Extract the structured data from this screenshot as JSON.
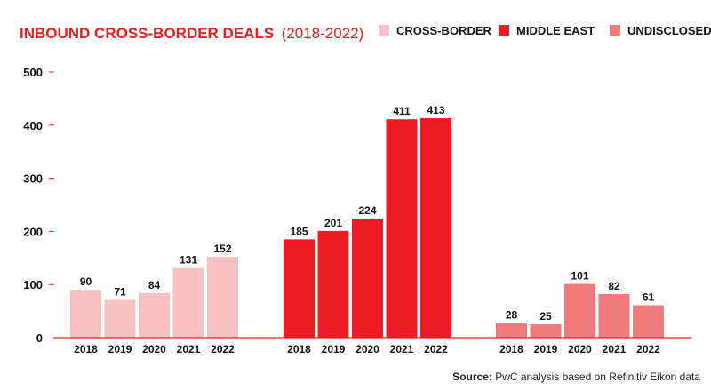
{
  "chart_data": {
    "type": "bar",
    "title": "INBOUND CROSS-BORDER DEALS",
    "subtitle": "(2018-2022)",
    "ylim": [
      0,
      500
    ],
    "yticks": [
      "500",
      "400",
      "300",
      "200",
      "100",
      "0"
    ],
    "ytick_values": [
      500,
      400,
      300,
      200,
      100,
      0
    ],
    "grid": false,
    "legend_position": "top-right",
    "groups": [
      {
        "name": "CROSS-BORDER",
        "color": "#f9c0c1",
        "categories": [
          "2018",
          "2019",
          "2020",
          "2021",
          "2022"
        ],
        "values": [
          90,
          71,
          84,
          131,
          152
        ],
        "labels": [
          "90",
          "71",
          "84",
          "131",
          "152"
        ]
      },
      {
        "name": "MIDDLE EAST",
        "color": "#ed1c24",
        "categories": [
          "2018",
          "2019",
          "2020",
          "2021",
          "2022"
        ],
        "values": [
          185,
          201,
          224,
          411,
          413
        ],
        "labels": [
          "185",
          "201",
          "224",
          "411",
          "413"
        ]
      },
      {
        "name": "UNDISCLOSED",
        "color": "#f07a7c",
        "categories": [
          "2018",
          "2019",
          "2020",
          "2021",
          "2022"
        ],
        "values": [
          28,
          25,
          101,
          82,
          61
        ],
        "labels": [
          "28",
          "25",
          "101",
          "82",
          "61"
        ]
      }
    ],
    "source_label": "Source:",
    "source_text": " PwC analysis based on Refinitiv Eikon data"
  },
  "colors": {
    "accent": "#e31e24",
    "axis": "#e31e24"
  }
}
